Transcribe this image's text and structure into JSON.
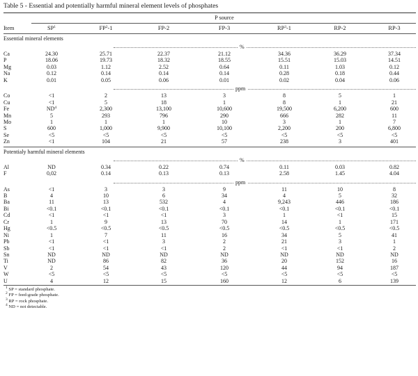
{
  "caption": "Table 5 -  Essential and potentially harmful mineral element levels of phosphates",
  "header": {
    "group": "P source",
    "item": "Item",
    "columns": [
      {
        "base": "SP",
        "sup": "1",
        "suffix": ""
      },
      {
        "base": "FP",
        "sup": "2",
        "suffix": "-1"
      },
      {
        "base": "FP-2",
        "sup": "",
        "suffix": ""
      },
      {
        "base": "FP-3",
        "sup": "",
        "suffix": ""
      },
      {
        "base": "RP",
        "sup": "3",
        "suffix": "-1"
      },
      {
        "base": "RP-2",
        "sup": "",
        "suffix": ""
      },
      {
        "base": "RP-3",
        "sup": "",
        "suffix": ""
      }
    ]
  },
  "essential": {
    "title": "Essential mineral elements",
    "unit_pct": "%",
    "unit_ppm": "ppm",
    "pct_rows": [
      {
        "item": "Ca",
        "v": [
          "24.30",
          "25.71",
          "22.37",
          "21.12",
          "34.36",
          "36.29",
          "37.34"
        ]
      },
      {
        "item": "P",
        "v": [
          "18.06",
          "19.73",
          "18.32",
          "18.55",
          "15.51",
          "15.03",
          "14.51"
        ]
      },
      {
        "item": "Mg",
        "v": [
          "0.03",
          "1.12",
          "2.52",
          "0.64",
          "0.11",
          "1.03",
          "0.12"
        ]
      },
      {
        "item": "Na",
        "v": [
          "0.12",
          "0.14",
          "0.14",
          "0.14",
          "0.28",
          "0.18",
          "0.44"
        ]
      },
      {
        "item": "K",
        "v": [
          "0.01",
          "0.05",
          "0.06",
          "0.01",
          "0.02",
          "0.04",
          "0.06"
        ]
      }
    ],
    "ppm_rows": [
      {
        "item": "Co",
        "v": [
          "<1",
          "2",
          "13",
          "3",
          "8",
          "5",
          "1"
        ]
      },
      {
        "item": "Cu",
        "v": [
          "<1",
          "5",
          "18",
          "1",
          "8",
          "1",
          "21"
        ]
      },
      {
        "item": "Fe",
        "v": [
          "ND4",
          "2,300",
          "13,100",
          "10,600",
          "19,500",
          "6,200",
          "600"
        ]
      },
      {
        "item": "Mn",
        "v": [
          "5",
          "293",
          "796",
          "290",
          "666",
          "282",
          "11"
        ]
      },
      {
        "item": "Mo",
        "v": [
          "1",
          "1",
          "1",
          "10",
          "3",
          "1",
          "7"
        ]
      },
      {
        "item": "S",
        "v": [
          "600",
          "1,000",
          "9,900",
          "10,100",
          "2,200",
          "200",
          "6,800"
        ]
      },
      {
        "item": "Se",
        "v": [
          "<5",
          "<5",
          "<5",
          "<5",
          "<5",
          "<5",
          "<5"
        ]
      },
      {
        "item": "Zn",
        "v": [
          "<1",
          "104",
          "21",
          "57",
          "238",
          "3",
          "401"
        ]
      }
    ]
  },
  "harmful": {
    "title": "Potentialy harmful mineral elements",
    "unit_pct": "%",
    "unit_ppm": "ppm",
    "pct_rows": [
      {
        "item": "Al",
        "v": [
          "ND",
          "0.34",
          "0.22",
          "0.74",
          "0.11",
          "0.03",
          "0.82"
        ]
      },
      {
        "item": "F",
        "v": [
          "0,02",
          "0.14",
          "0.13",
          "0.13",
          "2.58",
          "1.45",
          "4.04"
        ]
      }
    ],
    "ppm_rows": [
      {
        "item": "As",
        "v": [
          "<1",
          "3",
          "3",
          "9",
          "11",
          "10",
          "8"
        ]
      },
      {
        "item": "B",
        "v": [
          "4",
          "10",
          "6",
          "34",
          "4",
          "5",
          "32"
        ]
      },
      {
        "item": "Ba",
        "v": [
          "11",
          "13",
          "532",
          "4",
          "9,243",
          "446",
          "186"
        ]
      },
      {
        "item": "Bi",
        "v": [
          "<0.1",
          "<0.1",
          "<0.1",
          "<0.1",
          "<0.1",
          "<0.1",
          "<0.1"
        ]
      },
      {
        "item": "Cd",
        "v": [
          "<1",
          "<1",
          "<1",
          "3",
          "1",
          "<1",
          "15"
        ]
      },
      {
        "item": "Cr",
        "v": [
          "1",
          "9",
          "13",
          "70",
          "14",
          "1",
          "171"
        ]
      },
      {
        "item": "Hg",
        "v": [
          "<0.5",
          "<0.5",
          "<0.5",
          "<0.5",
          "<0.5",
          "<0.5",
          "<0.5"
        ]
      },
      {
        "item": "Ni",
        "v": [
          "1",
          "7",
          "11",
          "16",
          "34",
          "5",
          "41"
        ]
      },
      {
        "item": "Pb",
        "v": [
          "<1",
          "<1",
          "3",
          "2",
          "21",
          "3",
          "1"
        ]
      },
      {
        "item": "Sb",
        "v": [
          "<1",
          "<1",
          "<1",
          "2",
          "<1",
          "<1",
          "2"
        ]
      },
      {
        "item": "Sn",
        "v": [
          "ND",
          "ND",
          "ND",
          "ND",
          "ND",
          "ND",
          "ND"
        ]
      },
      {
        "item": "Ti",
        "v": [
          "ND",
          "86",
          "82",
          "36",
          "20",
          "152",
          "16"
        ]
      },
      {
        "item": "V",
        "v": [
          "2",
          "54",
          "43",
          "120",
          "44",
          "94",
          "187"
        ]
      },
      {
        "item": "W",
        "v": [
          "<5",
          "<5",
          "<5",
          "<5",
          "<5",
          "<5",
          "<5"
        ]
      },
      {
        "item": "U",
        "v": [
          "4",
          "12",
          "15",
          "160",
          "12",
          "6",
          "139"
        ]
      }
    ]
  },
  "footnotes": [
    {
      "num": "1",
      "text": " SP = standard phosphate."
    },
    {
      "num": "2",
      "text": " FP = feed-grade phosphate."
    },
    {
      "num": "3",
      "text": " RP = rock phosphate."
    },
    {
      "num": "4",
      "text": " ND = not detectable."
    }
  ]
}
